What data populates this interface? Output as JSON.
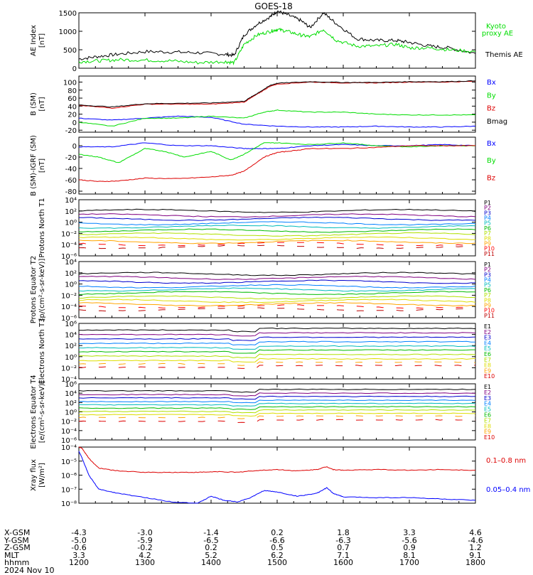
{
  "title": "GOES-18",
  "colors": {
    "black": "#000000",
    "green": "#00dd00",
    "blue": "#0000ff",
    "red": "#dd0000"
  },
  "chart_data": [
    {
      "type": "line",
      "panel": "ae",
      "ylabel": "AE Index [nT]",
      "ylim": [
        0,
        1500
      ],
      "yticks": [
        [
          "1500",
          "1500"
        ],
        [
          "1000",
          "1000"
        ],
        [
          "500",
          "500"
        ],
        [
          "0",
          "0"
        ]
      ],
      "legend": [
        {
          "name": "Kyoto",
          "color": "#00dd00"
        },
        {
          "name": "proxy AE",
          "color": "#00dd00"
        },
        {
          "name": "Themis AE",
          "color": "#000000"
        }
      ],
      "series": [
        {
          "name": "Themis AE",
          "color": "#000000",
          "x": [
            12.0,
            12.3,
            12.6,
            13.0,
            13.4,
            13.8,
            14.2,
            14.35,
            14.5,
            14.7,
            14.9,
            15.0,
            15.15,
            15.35,
            15.5,
            15.7,
            15.9,
            16.2,
            16.5,
            16.8,
            17.0,
            17.3,
            17.6,
            18.0
          ],
          "y": [
            250,
            320,
            380,
            450,
            440,
            420,
            380,
            350,
            900,
            1200,
            1400,
            1550,
            1450,
            1300,
            1100,
            1500,
            1200,
            800,
            750,
            750,
            700,
            600,
            550,
            400
          ]
        },
        {
          "name": "Kyoto proxy AE",
          "color": "#00dd00",
          "x": [
            12.0,
            12.3,
            12.6,
            13.0,
            13.4,
            13.8,
            14.2,
            14.35,
            14.5,
            14.7,
            14.9,
            15.0,
            15.15,
            15.35,
            15.5,
            15.7,
            15.9,
            16.2,
            16.5,
            16.8,
            17.0,
            17.3,
            17.6,
            18.0
          ],
          "y": [
            180,
            200,
            230,
            220,
            200,
            150,
            180,
            150,
            650,
            900,
            1000,
            1050,
            1000,
            900,
            850,
            1050,
            750,
            600,
            600,
            650,
            550,
            550,
            500,
            450
          ]
        }
      ]
    },
    {
      "type": "line",
      "panel": "bsm",
      "ylabel": "B (SM) [nT]",
      "ylim": [
        -25,
        115
      ],
      "yticks": [
        [
          "100",
          "100"
        ],
        [
          "80",
          "80"
        ],
        [
          "60",
          "60"
        ],
        [
          "40",
          "40"
        ],
        [
          "20",
          "20"
        ],
        [
          "0",
          "0"
        ],
        [
          "-20",
          "-20"
        ]
      ],
      "legend": [
        {
          "name": "Bx",
          "color": "#0000ff"
        },
        {
          "name": "By",
          "color": "#00dd00"
        },
        {
          "name": "Bz",
          "color": "#dd0000"
        },
        {
          "name": "Bmag",
          "color": "#000000"
        }
      ],
      "series": [
        {
          "name": "Bx",
          "color": "#0000ff",
          "x": [
            12.0,
            12.5,
            13.0,
            13.5,
            14.0,
            14.5,
            15.0,
            15.5,
            16.0,
            16.5,
            17.0,
            17.5,
            18.0
          ],
          "y": [
            10,
            5,
            10,
            15,
            12,
            -5,
            -10,
            -12,
            -12,
            -10,
            -12,
            -12,
            -10
          ]
        },
        {
          "name": "By",
          "color": "#00dd00",
          "x": [
            12.0,
            12.5,
            13.0,
            13.5,
            14.0,
            14.5,
            14.8,
            15.0,
            15.5,
            16.0,
            16.5,
            17.0,
            17.5,
            18.0
          ],
          "y": [
            0,
            -10,
            10,
            10,
            15,
            10,
            25,
            30,
            25,
            25,
            20,
            18,
            18,
            18
          ]
        },
        {
          "name": "Bz",
          "color": "#dd0000",
          "x": [
            12.0,
            12.5,
            13.0,
            13.5,
            14.0,
            14.5,
            14.7,
            14.9,
            15.0,
            15.5,
            16.0,
            16.5,
            17.0,
            17.5,
            18.0
          ],
          "y": [
            42,
            35,
            45,
            45,
            45,
            50,
            70,
            90,
            95,
            100,
            98,
            98,
            100,
            100,
            102
          ]
        },
        {
          "name": "Bmag",
          "color": "#000000",
          "x": [
            12.0,
            12.5,
            13.0,
            13.5,
            14.0,
            14.5,
            14.7,
            14.9,
            15.0,
            15.5,
            16.0,
            16.5,
            17.0,
            17.5,
            18.0
          ],
          "y": [
            43,
            38,
            46,
            47,
            48,
            52,
            72,
            92,
            97,
            101,
            99,
            99,
            101,
            101,
            103
          ]
        }
      ]
    },
    {
      "type": "line",
      "panel": "bigrf",
      "ylabel": "B (SM)-IGRF (SM) [nT]",
      "ylim": [
        -85,
        15
      ],
      "yticks": [
        [
          "0",
          "0"
        ],
        [
          "-20",
          "-20"
        ],
        [
          "-40",
          "-40"
        ],
        [
          "-60",
          "-60"
        ],
        [
          "-80",
          "-80"
        ]
      ],
      "legend": [
        {
          "name": "Bx",
          "color": "#0000ff"
        },
        {
          "name": "By",
          "color": "#00dd00"
        },
        {
          "name": "Bz",
          "color": "#dd0000"
        }
      ],
      "series": [
        {
          "name": "Bx",
          "color": "#0000ff",
          "x": [
            12.0,
            12.5,
            13.0,
            13.5,
            14.0,
            14.5,
            14.8,
            15.0,
            15.5,
            16.0,
            16.5,
            17.0,
            17.5,
            18.0
          ],
          "y": [
            -2,
            -2,
            5,
            0,
            0,
            -5,
            -5,
            -5,
            0,
            2,
            0,
            0,
            2,
            0
          ]
        },
        {
          "name": "By",
          "color": "#00dd00",
          "x": [
            12.0,
            12.3,
            12.6,
            13.0,
            13.3,
            13.6,
            14.0,
            14.3,
            14.5,
            14.8,
            15.0,
            15.5,
            16.0,
            16.5,
            17.0,
            17.5,
            18.0
          ],
          "y": [
            -15,
            -20,
            -30,
            -5,
            -10,
            -20,
            -10,
            -25,
            -15,
            5,
            5,
            2,
            5,
            0,
            -2,
            0,
            0
          ]
        },
        {
          "name": "Bz",
          "color": "#dd0000",
          "x": [
            12.0,
            12.3,
            12.6,
            13.0,
            13.5,
            14.0,
            14.3,
            14.5,
            14.8,
            15.0,
            15.3,
            15.5,
            16.0,
            16.5,
            17.0,
            17.5,
            18.0
          ],
          "y": [
            -60,
            -63,
            -62,
            -57,
            -58,
            -55,
            -52,
            -45,
            -20,
            -12,
            -8,
            -5,
            -5,
            -3,
            0,
            0,
            0
          ]
        }
      ]
    },
    {
      "type": "line",
      "panel": "pn",
      "ylabel": "Protons North T1",
      "ylog": true,
      "ylim": [
        -6,
        4
      ],
      "yticks": [
        [
          "4",
          "10⁴"
        ],
        [
          "2",
          "10²"
        ],
        [
          "0",
          "10⁰"
        ],
        [
          "-2",
          "10⁻²"
        ],
        [
          "-4",
          "10⁻⁴"
        ],
        [
          "-6",
          "10⁻⁶"
        ]
      ],
      "channels": [
        "P1",
        "P2",
        "P3",
        "P4",
        "P5",
        "P6",
        "P7",
        "P8",
        "P9",
        "P10",
        "P11"
      ],
      "channel_colors": [
        "#000000",
        "#800080",
        "#0000cc",
        "#0080ff",
        "#00bbbb",
        "#00bb00",
        "#b0e000",
        "#dddd00",
        "#ffa500",
        "#ff0000",
        "#bb0000"
      ],
      "levels": [
        2.0,
        1.2,
        0.6,
        -0.2,
        -0.8,
        -1.5,
        -2.2,
        -2.9,
        -3.5,
        -3.9,
        -4.4
      ]
    },
    {
      "type": "line",
      "panel": "pe",
      "ylabel": "Protons Equator T2 [p/(cm²-s-sr-keV)]",
      "ylog": true,
      "ylim": [
        -6,
        4
      ],
      "yticks": [
        [
          "4",
          "10⁴"
        ],
        [
          "2",
          "10²"
        ],
        [
          "0",
          "10⁰"
        ],
        [
          "-2",
          "10⁻²"
        ],
        [
          "-4",
          "10⁻⁴"
        ],
        [
          "-6",
          "10⁻⁶"
        ]
      ],
      "channels": [
        "P1",
        "P2",
        "P3",
        "P4",
        "P5",
        "P6",
        "P7",
        "P8",
        "P9",
        "P10",
        "P11"
      ],
      "channel_colors": [
        "#000000",
        "#800080",
        "#0000cc",
        "#0080ff",
        "#00bbbb",
        "#00bb00",
        "#b0e000",
        "#dddd00",
        "#ffa500",
        "#ff0000",
        "#bb0000"
      ],
      "levels": [
        1.8,
        1.1,
        0.4,
        -0.4,
        -1.0,
        -1.6,
        -2.4,
        -3.0,
        -3.6,
        -4.0,
        -4.5
      ]
    },
    {
      "type": "line",
      "panel": "en",
      "ylabel": "Electrons North T3",
      "ylog": true,
      "ylim": [
        -4,
        6
      ],
      "yticks": [
        [
          "6",
          "10⁶"
        ],
        [
          "4",
          "10⁴"
        ],
        [
          "2",
          "10²"
        ],
        [
          "0",
          "10⁰"
        ],
        [
          "-2",
          "10⁻²"
        ],
        [
          "-4",
          "10⁻⁴"
        ]
      ],
      "channels": [
        "E1",
        "E2",
        "E3",
        "E4",
        "E5",
        "E6",
        "E7",
        "E8",
        "E9",
        "E10"
      ],
      "channel_colors": [
        "#000000",
        "#800080",
        "#0000cc",
        "#0080ff",
        "#00bbbb",
        "#00bb00",
        "#b0e000",
        "#dddd00",
        "#ffa500",
        "#dd0000"
      ],
      "levels": [
        4.8,
        4.0,
        3.2,
        2.4,
        1.6,
        0.9,
        0.1,
        -0.7,
        -1.3,
        -1.9
      ]
    },
    {
      "type": "line",
      "panel": "ee",
      "ylabel": "Electrons Equator T4 [e/(cm²-s-sr-keV)]",
      "ylog": true,
      "ylim": [
        -6,
        6
      ],
      "yticks": [
        [
          "6",
          "10⁶"
        ],
        [
          "4",
          "10⁴"
        ],
        [
          "2",
          "10²"
        ],
        [
          "0",
          "10⁰"
        ],
        [
          "-2",
          "10⁻²"
        ],
        [
          "-4",
          "10⁻⁴"
        ],
        [
          "-6",
          "10⁻⁶"
        ]
      ],
      "channels": [
        "E1",
        "E2",
        "E3",
        "E4",
        "E5",
        "E6",
        "E7",
        "E8",
        "E9",
        "E10"
      ],
      "channel_colors": [
        "#000000",
        "#800080",
        "#0000cc",
        "#0080ff",
        "#00bbbb",
        "#00bb00",
        "#b0e000",
        "#dddd00",
        "#ffa500",
        "#dd0000"
      ],
      "levels": [
        4.5,
        3.7,
        3.0,
        2.2,
        1.5,
        0.8,
        0.1,
        -0.6,
        -1.2,
        -2.0
      ]
    },
    {
      "type": "line",
      "panel": "xray",
      "ylabel": "Xray flux [W/m²]",
      "ylog": true,
      "ylim": [
        -8,
        -4
      ],
      "yticks": [
        [
          "-4",
          "10⁻⁴"
        ],
        [
          "-5",
          "10⁻⁵"
        ],
        [
          "-6",
          "10⁻⁶"
        ],
        [
          "-7",
          "10⁻⁷"
        ],
        [
          "-8",
          "10⁻⁸"
        ]
      ],
      "legend": [
        {
          "name": "0.1–0.8 nm",
          "color": "#dd0000"
        },
        {
          "name": "0.05–0.4 nm",
          "color": "#0000ff"
        }
      ],
      "series": [
        {
          "name": "0.1–0.8 nm",
          "color": "#dd0000",
          "x": [
            12.0,
            12.05,
            12.15,
            12.3,
            12.6,
            13.0,
            13.4,
            13.8,
            14.1,
            14.4,
            14.6,
            15.0,
            15.3,
            15.6,
            15.75,
            15.85,
            16.0,
            16.5,
            17.0,
            17.5,
            18.0
          ],
          "y": [
            -4.0,
            -4.1,
            -4.8,
            -5.5,
            -5.7,
            -5.8,
            -5.8,
            -5.8,
            -5.75,
            -5.8,
            -5.7,
            -5.6,
            -5.7,
            -5.6,
            -5.4,
            -5.6,
            -5.65,
            -5.6,
            -5.65,
            -5.6,
            -5.65
          ]
        },
        {
          "name": "0.05–0.4 nm",
          "color": "#0000ff",
          "x": [
            12.0,
            12.05,
            12.15,
            12.3,
            12.6,
            13.0,
            13.4,
            13.8,
            14.0,
            14.2,
            14.4,
            14.6,
            14.8,
            15.0,
            15.3,
            15.6,
            15.75,
            15.85,
            16.0,
            16.5,
            17.0,
            17.5,
            18.0
          ],
          "y": [
            -4.3,
            -4.8,
            -6.0,
            -7.0,
            -7.3,
            -7.6,
            -7.9,
            -8.0,
            -7.5,
            -7.8,
            -7.9,
            -7.6,
            -7.1,
            -7.2,
            -7.5,
            -7.3,
            -6.9,
            -7.3,
            -7.55,
            -7.6,
            -7.6,
            -7.7,
            -7.8
          ]
        }
      ]
    }
  ],
  "xaxis": {
    "xlim": [
      12.0,
      18.0
    ],
    "ticks": [
      12,
      13,
      14,
      15,
      16,
      17,
      18
    ]
  },
  "ephemeris": {
    "labels": [
      "X-GSM",
      "Y-GSM",
      "Z-GSM",
      "MLT",
      "hhmm",
      "2024 Nov 10"
    ],
    "columns": [
      [
        "-4.3",
        "-5.0",
        "-0.6",
        "3.3",
        "1200"
      ],
      [
        "-3.0",
        "-5.9",
        "-0.2",
        "4.2",
        "1300"
      ],
      [
        "-1.4",
        "-6.5",
        "0.2",
        "5.2",
        "1400"
      ],
      [
        "0.2",
        "-6.6",
        "0.5",
        "6.2",
        "1500"
      ],
      [
        "1.8",
        "-6.3",
        "0.7",
        "7.1",
        "1600"
      ],
      [
        "3.3",
        "-5.6",
        "0.9",
        "8.1",
        "1700"
      ],
      [
        "4.6",
        "-4.6",
        "1.2",
        "9.1",
        "1800"
      ]
    ]
  }
}
